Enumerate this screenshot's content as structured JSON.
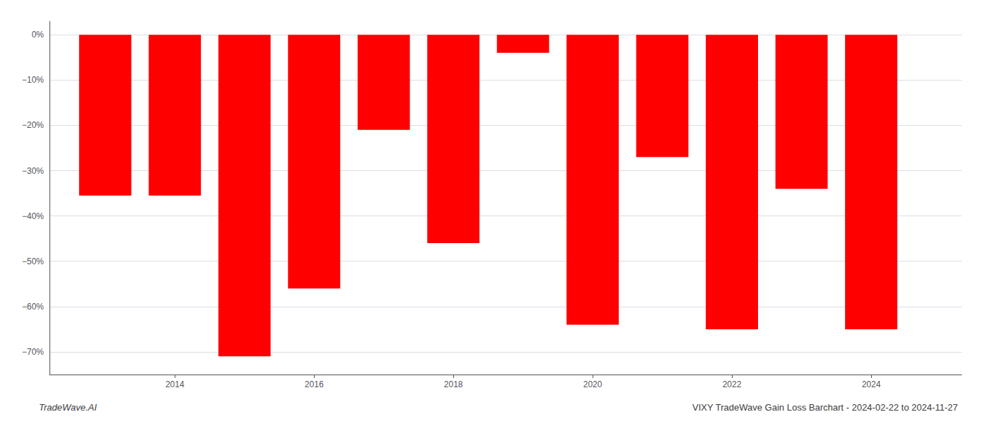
{
  "chart_data": {
    "type": "bar",
    "title": "VIXY TradeWave Gain Loss Barchart - 2024-02-22 to 2024-11-27",
    "annotations": [
      "TradeWave.AI"
    ],
    "x": [
      2013,
      2014,
      2015,
      2016,
      2017,
      2018,
      2019,
      2020,
      2021,
      2022,
      2023,
      2024
    ],
    "values": [
      -35.5,
      -35.5,
      -71.0,
      -56.0,
      -21.0,
      -46.0,
      -4.0,
      -64.0,
      -27.0,
      -65.0,
      -34.0,
      -65.0
    ],
    "color": "#ff0000",
    "xlim": [
      2012.2,
      2025.3
    ],
    "xticks": [
      2014,
      2016,
      2018,
      2020,
      2022,
      2024
    ],
    "ylim": [
      -75,
      3
    ],
    "yticks": [
      {
        "value": 0,
        "label": "0%"
      },
      {
        "value": -10,
        "label": "−10%"
      },
      {
        "value": -20,
        "label": "−20%"
      },
      {
        "value": -30,
        "label": "−30%"
      },
      {
        "value": -40,
        "label": "−40%"
      },
      {
        "value": -50,
        "label": "−50%"
      },
      {
        "value": -60,
        "label": "−60%"
      },
      {
        "value": -70,
        "label": "−70%"
      }
    ],
    "grid": true
  }
}
